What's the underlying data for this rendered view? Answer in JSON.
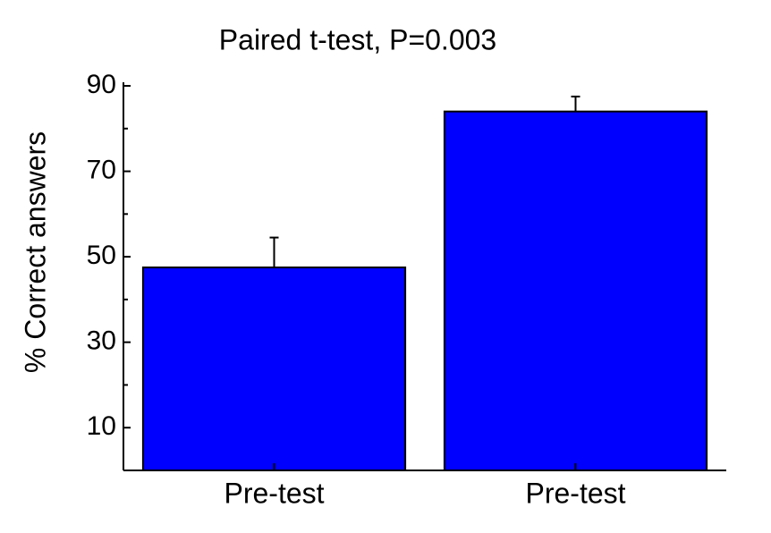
{
  "chart_data": {
    "type": "bar",
    "title": "Paired t-test, P=0.003",
    "ylabel": "% Correct answers",
    "categories": [
      "Pre-test",
      "Pre-test"
    ],
    "values": [
      47.5,
      84
    ],
    "errors": [
      7,
      3.5
    ],
    "color": "#0000ff",
    "ylim": [
      0,
      90
    ],
    "yticks": [
      10,
      30,
      50,
      70,
      90
    ],
    "minor_yticks": [
      20,
      40,
      60,
      80
    ]
  }
}
